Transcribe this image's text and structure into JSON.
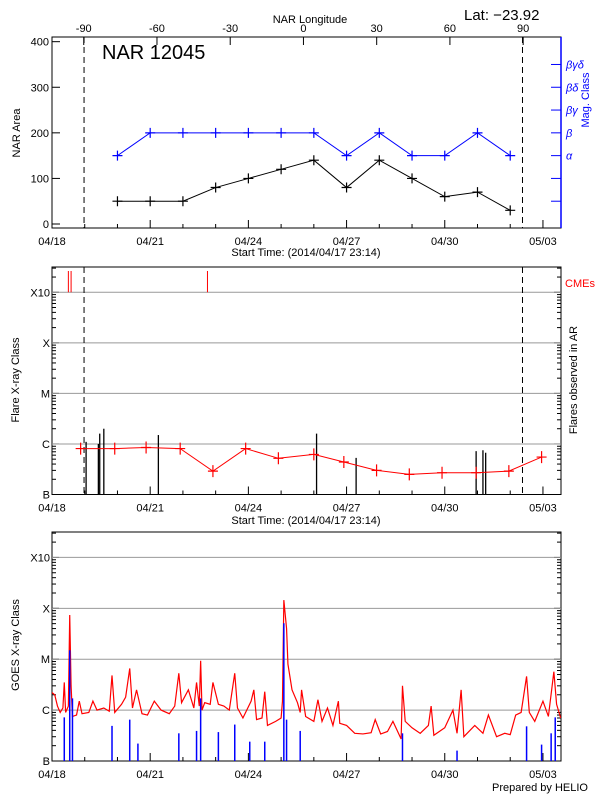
{
  "header": {
    "lat_label": "Lat: −23.92",
    "top_axis_label": "NAR Longitude",
    "footer": "Prepared by HELIO"
  },
  "colors": {
    "area_line": "#000000",
    "mag_class_line": "#0000ff",
    "flare_avg_line": "#ff0000",
    "cme_marks": "#ff0000",
    "goes_long": "#ff0000",
    "goes_short": "#0000ff",
    "grid": "#999999"
  },
  "chart_data": [
    {
      "type": "line",
      "title": "NAR 12045",
      "xlabel": "Start Time: (2014/04/17 23:14)",
      "ylabel": "NAR Area",
      "ylabel_right": "Mag. Class",
      "xlim": [
        "04/17 23:14",
        "05/03 13:40"
      ],
      "ylim": [
        -8,
        410
      ],
      "xticks": [
        "04/18",
        "04/21",
        "04/24",
        "04/27",
        "04/30",
        "05/03"
      ],
      "yticks": [
        0,
        100,
        200,
        300,
        400
      ],
      "top_axis": {
        "label": "NAR Longitude",
        "ticks": [
          -90,
          -60,
          -30,
          0,
          30,
          60,
          90
        ],
        "xlim": [
          -103,
          105.5
        ]
      },
      "right_axis": {
        "labels": [
          "α",
          "β",
          "βγ",
          "βδ",
          "βγδ"
        ],
        "unlabeled_ticks_below": 2
      },
      "longitude_markers": [
        {
          "time": "04/18 23:30",
          "longitude": -90
        },
        {
          "time": "05/02 09:00",
          "longitude": 90
        }
      ],
      "series": [
        {
          "name": "NAR Area",
          "x": [
            "04/20",
            "04/21",
            "04/22",
            "04/23",
            "04/24",
            "04/25",
            "04/26",
            "04/27",
            "04/28",
            "04/29",
            "04/30",
            "05/01",
            "05/02"
          ],
          "values": [
            50,
            50,
            50,
            80,
            100,
            120,
            140,
            80,
            140,
            100,
            60,
            70,
            30
          ]
        },
        {
          "name": "Mag. Class",
          "x": [
            "04/20",
            "04/21",
            "04/22",
            "04/23",
            "04/24",
            "04/25",
            "04/26",
            "04/27",
            "04/28",
            "04/29",
            "04/30",
            "05/01",
            "05/02"
          ],
          "values": [
            "α",
            "β",
            "β",
            "β",
            "β",
            "β",
            "β",
            "α",
            "β",
            "α",
            "α",
            "β",
            "α"
          ]
        }
      ],
      "grid": false
    },
    {
      "type": "line",
      "xlabel": "Start Time: (2014/04/17 23:14)",
      "ylabel": "Flare X-ray Class",
      "ylabel_right": "Flares observed in AR",
      "cme_label": "CMEs",
      "yscale": "log",
      "xlim": [
        "04/17 23:14",
        "05/03 13:40"
      ],
      "ylim": [
        1e-07,
        0.00316
      ],
      "xticks": [
        "04/18",
        "04/21",
        "04/24",
        "04/27",
        "04/30",
        "05/03"
      ],
      "yticks": [
        {
          "value": 1e-07,
          "label": "B"
        },
        {
          "value": 1e-06,
          "label": "C"
        },
        {
          "value": 1e-05,
          "label": "M"
        },
        {
          "value": 0.0001,
          "label": "X"
        },
        {
          "value": 0.001,
          "label": "X10"
        }
      ],
      "grid": true,
      "longitude_markers": [
        {
          "time": "04/18 23:30",
          "longitude": -90
        },
        {
          "time": "05/02 09:00",
          "longitude": 90
        }
      ],
      "average": {
        "x": [
          "04/18 21:00",
          "04/19 22:00",
          "04/20 21:00",
          "04/21 22:00",
          "04/22 22:00",
          "04/23 22:00",
          "04/24 22:00",
          "04/26 00:00",
          "04/26 22:00",
          "04/27 22:00",
          "04/28 22:00",
          "04/29 22:00",
          "04/30 23:00",
          "05/01 23:00",
          "05/02 23:00"
        ],
        "values": [
          8.1e-07,
          8.1e-07,
          8.5e-07,
          8.1e-07,
          2.9e-07,
          8.1e-07,
          5.2e-07,
          6.2e-07,
          4.4e-07,
          3e-07,
          2.5e-07,
          2.7e-07,
          2.7e-07,
          2.9e-07,
          5.5e-07
        ]
      },
      "flares": [
        {
          "time": "04/19 01:00",
          "peak": 1.1e-06
        },
        {
          "time": "04/19 10:00",
          "peak": 1e-06
        },
        {
          "time": "04/19 11:00",
          "peak": 1.6e-06
        },
        {
          "time": "04/19 14:00",
          "peak": 2e-06
        },
        {
          "time": "04/21 06:00",
          "peak": 1.5e-06
        },
        {
          "time": "04/26 02:00",
          "peak": 1.6e-06
        },
        {
          "time": "04/27 07:00",
          "peak": 5.3e-07
        },
        {
          "time": "04/30 23:00",
          "peak": 7.2e-07
        },
        {
          "time": "05/01 04:00",
          "peak": 7.5e-07
        },
        {
          "time": "05/01 06:00",
          "peak": 6.7e-07
        }
      ],
      "cmes": [
        "04/18 12:00",
        "04/18 14:00",
        "04/22 18:00"
      ]
    },
    {
      "type": "line",
      "ylabel": "GOES X-ray Class",
      "yscale": "log",
      "xlim": [
        "04/17 23:14",
        "05/03 13:40"
      ],
      "ylim": [
        1e-07,
        0.00316
      ],
      "xticks": [
        "04/18",
        "04/21",
        "04/24",
        "04/27",
        "04/30",
        "05/03"
      ],
      "yticks": [
        {
          "value": 1e-07,
          "label": "B"
        },
        {
          "value": 1e-06,
          "label": "C"
        },
        {
          "value": 1e-05,
          "label": "M"
        },
        {
          "value": 0.0001,
          "label": "X"
        },
        {
          "value": 0.001,
          "label": "X10"
        }
      ],
      "grid": true,
      "series": [
        {
          "channel": "long",
          "points": [
            [
              "04/17 23:14",
              2.3e-06
            ],
            [
              "04/18 02:00",
              2e-06
            ],
            [
              "04/18 04:00",
              1.2e-06
            ],
            [
              "04/18 06:00",
              9e-07
            ],
            [
              "04/18 08:00",
              1.1e-06
            ],
            [
              "04/18 09:00",
              3.5e-06
            ],
            [
              "04/18 10:00",
              9e-07
            ],
            [
              "04/18 12:00",
              1.2e-06
            ],
            [
              "04/18 13:00",
              7.4e-05
            ],
            [
              "04/18 14:00",
              3e-06
            ],
            [
              "04/18 15:00",
              7.5e-07
            ],
            [
              "04/18 18:00",
              8e-07
            ],
            [
              "04/18 20:00",
              1.5e-06
            ],
            [
              "04/18 22:00",
              8.5e-07
            ],
            [
              "04/19 03:00",
              9e-07
            ],
            [
              "04/19 06:00",
              1.5e-06
            ],
            [
              "04/19 09:00",
              1e-06
            ],
            [
              "04/19 14:00",
              1.1e-06
            ],
            [
              "04/19 18:00",
              9.5e-07
            ],
            [
              "04/19 20:00",
              4.8e-06
            ],
            [
              "04/19 22:00",
              9e-07
            ],
            [
              "04/20 03:00",
              1.3e-06
            ],
            [
              "04/20 06:00",
              1.8e-06
            ],
            [
              "04/20 09:00",
              6.6e-06
            ],
            [
              "04/20 11:00",
              1.1e-06
            ],
            [
              "04/20 14:00",
              2.5e-06
            ],
            [
              "04/20 18:00",
              8.5e-07
            ],
            [
              "04/20 22:00",
              8e-07
            ],
            [
              "04/21 03:00",
              1.5e-06
            ],
            [
              "04/21 08:00",
              1e-06
            ],
            [
              "04/21 14:00",
              8.5e-07
            ],
            [
              "04/21 18:00",
              1.2e-06
            ],
            [
              "04/21 21:00",
              5.3e-06
            ],
            [
              "04/21 23:00",
              1.4e-06
            ],
            [
              "04/22 04:00",
              2.5e-06
            ],
            [
              "04/22 08:00",
              1.1e-06
            ],
            [
              "04/22 10:00",
              3.5e-06
            ],
            [
              "04/22 12:00",
              1.2e-06
            ],
            [
              "04/22 13:00",
              9.3e-06
            ],
            [
              "04/22 14:00",
              1e-06
            ],
            [
              "04/22 16:00",
              1.4e-06
            ],
            [
              "04/22 20:00",
              1.3e-06
            ],
            [
              "04/22 22:00",
              3.5e-06
            ],
            [
              "04/23 02:00",
              1.3e-06
            ],
            [
              "04/23 06:00",
              1.2e-06
            ],
            [
              "04/23 10:00",
              1e-06
            ],
            [
              "04/23 14:00",
              5.3e-06
            ],
            [
              "04/23 16:00",
              1.1e-06
            ],
            [
              "04/23 20:00",
              7e-07
            ],
            [
              "04/24 02:00",
              1.5e-06
            ],
            [
              "04/24 04:00",
              2.5e-06
            ],
            [
              "04/24 06:00",
              6.5e-07
            ],
            [
              "04/24 10:00",
              7e-07
            ],
            [
              "04/24 12:00",
              2.3e-06
            ],
            [
              "04/24 14:00",
              5e-07
            ],
            [
              "04/24 20:00",
              6e-07
            ],
            [
              "04/25 00:00",
              7e-07
            ],
            [
              "04/25 01:00",
              1.5e-06
            ],
            [
              "04/25 02:00",
              0.000145
            ],
            [
              "04/25 04:00",
              4e-05
            ],
            [
              "04/25 05:00",
              8e-06
            ],
            [
              "04/25 08:00",
              2.5e-06
            ],
            [
              "04/25 12:00",
              1.4e-06
            ],
            [
              "04/25 14:00",
              9e-07
            ],
            [
              "04/25 15:00",
              2.5e-06
            ],
            [
              "04/25 18:00",
              7.5e-07
            ],
            [
              "04/26 00:00",
              6e-07
            ],
            [
              "04/26 03:00",
              1.6e-06
            ],
            [
              "04/26 06:00",
              6e-07
            ],
            [
              "04/26 10:00",
              1.1e-06
            ],
            [
              "04/26 14:00",
              5e-07
            ],
            [
              "04/26 18:00",
              1.5e-06
            ],
            [
              "04/26 19:00",
              5.5e-07
            ],
            [
              "04/27 00:00",
              5e-07
            ],
            [
              "04/27 06:00",
              3.5e-07
            ],
            [
              "04/27 12:00",
              3.4e-07
            ],
            [
              "04/27 18:00",
              3.6e-07
            ],
            [
              "04/27 21:00",
              6.5e-07
            ],
            [
              "04/28 01:00",
              3.4e-07
            ],
            [
              "04/28 06:00",
              3.8e-07
            ],
            [
              "04/28 10:00",
              6e-07
            ],
            [
              "04/28 16:00",
              2.7e-07
            ],
            [
              "04/28 17:00",
              3e-06
            ],
            [
              "04/28 19:00",
              6e-07
            ],
            [
              "04/29 00:00",
              4.5e-07
            ],
            [
              "04/29 06:00",
              3.5e-07
            ],
            [
              "04/29 12:00",
              5e-07
            ],
            [
              "04/29 14:00",
              1.2e-06
            ],
            [
              "04/29 16:00",
              3.2e-07
            ],
            [
              "04/30 00:00",
              4.5e-07
            ],
            [
              "04/30 06:00",
              1e-06
            ],
            [
              "04/30 09:00",
              3.5e-07
            ],
            [
              "04/30 12:00",
              2.5e-06
            ],
            [
              "04/30 14:00",
              3e-07
            ],
            [
              "04/30 22:00",
              5e-07
            ],
            [
              "05/01 04:00",
              3.5e-07
            ],
            [
              "05/01 08:00",
              8e-07
            ],
            [
              "05/01 14:00",
              3e-07
            ],
            [
              "05/01 20:00",
              3.5e-07
            ],
            [
              "05/02 00:00",
              3.3e-07
            ],
            [
              "05/02 04:00",
              8e-07
            ],
            [
              "05/02 08:00",
              9e-07
            ],
            [
              "05/02 12:00",
              4.6e-06
            ],
            [
              "05/02 14:00",
              9e-07
            ],
            [
              "05/02 18:00",
              6e-07
            ],
            [
              "05/03 00:00",
              1.5e-06
            ],
            [
              "05/03 04:00",
              7.5e-07
            ],
            [
              "05/03 08:00",
              5.7e-06
            ],
            [
              "05/03 10:00",
              1.3e-06
            ],
            [
              "05/03 13:00",
              7e-07
            ]
          ]
        },
        {
          "channel": "short",
          "points": [
            [
              "04/18 09:00",
              7.2e-07
            ],
            [
              "04/18 13:00",
              1.5e-05
            ],
            [
              "04/18 15:00",
              1.7e-06
            ],
            [
              "04/19 20:00",
              4.9e-07
            ],
            [
              "04/20 09:00",
              6.5e-07
            ],
            [
              "04/20 15:00",
              2.2e-07
            ],
            [
              "04/21 21:00",
              3.5e-07
            ],
            [
              "04/22 10:00",
              3.9e-07
            ],
            [
              "04/22 13:00",
              1.7e-06
            ],
            [
              "04/23 02:00",
              3.7e-07
            ],
            [
              "04/23 14:00",
              5.2e-07
            ],
            [
              "04/24 01:00",
              2.4e-07
            ],
            [
              "04/24 12:00",
              2.4e-07
            ],
            [
              "04/25 02:00",
              5.1e-05
            ],
            [
              "04/25 04:00",
              6.5e-07
            ],
            [
              "04/25 14:00",
              3.9e-07
            ],
            [
              "04/28 17:00",
              3.5e-07
            ],
            [
              "04/30 09:00",
              1.6e-07
            ],
            [
              "05/02 12:00",
              4.8e-07
            ],
            [
              "05/02 23:00",
              2.1e-07
            ],
            [
              "05/03 06:00",
              3.5e-07
            ],
            [
              "05/03 09:00",
              7.2e-07
            ]
          ]
        }
      ]
    }
  ]
}
